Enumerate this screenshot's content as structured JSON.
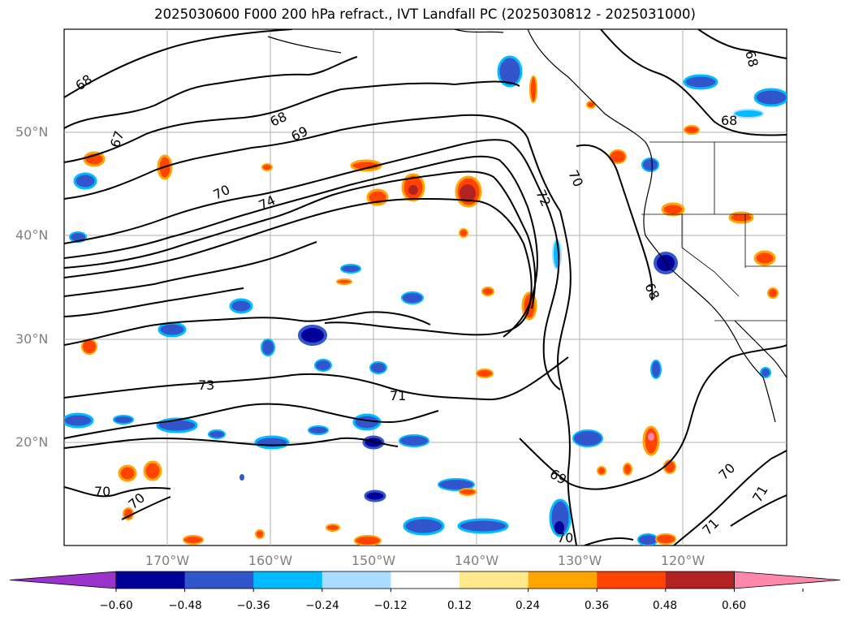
{
  "title": "2025030600 F000 200 hPa refract., IVT Landfall PC (2025030812 - 2025031000)",
  "map": {
    "projection": "cylindrical",
    "lon_range": [
      -180,
      -110
    ],
    "lat_range": [
      10,
      60
    ],
    "grid": true,
    "lat_labels": [
      "50°N",
      "40°N",
      "30°N",
      "20°N"
    ],
    "lon_labels": [
      "170°W",
      "160°W",
      "150°W",
      "140°W",
      "130°W",
      "120°W"
    ],
    "contour_labels": [
      "68",
      "67",
      "68",
      "69",
      "70",
      "74",
      "72",
      "70",
      "68",
      "68",
      "73",
      "71",
      "70",
      "70",
      "69",
      "70",
      "70",
      "71",
      "71",
      "68"
    ],
    "contour_color": "#000000",
    "coast_color": "#000000"
  },
  "colorbar": {
    "colors": [
      "#9933cc",
      "#000099",
      "#3355cc",
      "#00bbff",
      "#aaddff",
      "#ffffff",
      "#ffe88c",
      "#ffa500",
      "#ff4400",
      "#b22222",
      "#ff88aa"
    ],
    "tick_labels": [
      "−0.60",
      "−0.48",
      "−0.36",
      "−0.24",
      "−0.12",
      "0.12",
      "0.24",
      "0.36",
      "0.48",
      "0.60"
    ],
    "extend": "both"
  }
}
